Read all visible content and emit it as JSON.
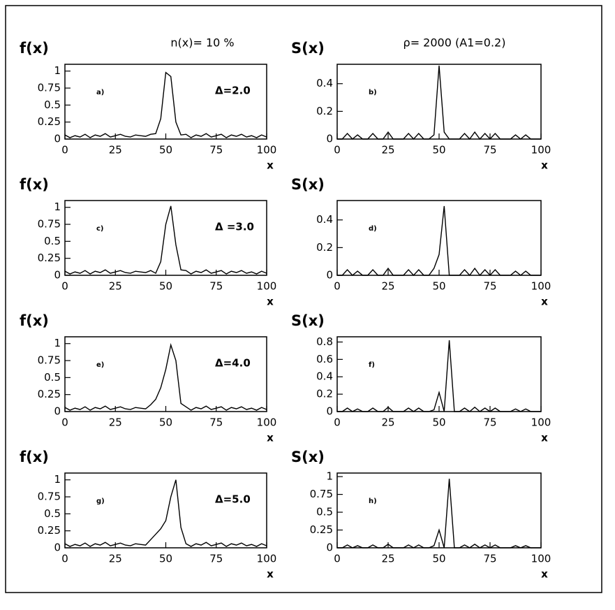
{
  "chart_data": [
    {
      "type": "line",
      "title": "n(x)= 10 %",
      "y_label": "f(x)",
      "x_label": "x",
      "panel_label": "a)",
      "annotation": "Δ=2.0",
      "x": [
        0,
        2.5,
        5,
        7.5,
        10,
        12.5,
        15,
        17.5,
        20,
        22.5,
        25,
        27.5,
        30,
        32.5,
        35,
        37.5,
        40,
        42.5,
        45,
        47.5,
        50,
        52.5,
        55,
        57.5,
        60,
        62.5,
        65,
        67.5,
        70,
        72.5,
        75,
        77.5,
        80,
        82.5,
        85,
        87.5,
        90,
        92.5,
        95,
        97.5,
        100
      ],
      "values": [
        0.06,
        0.02,
        0.05,
        0.03,
        0.07,
        0.02,
        0.06,
        0.04,
        0.08,
        0.03,
        0.05,
        0.07,
        0.04,
        0.03,
        0.06,
        0.05,
        0.04,
        0.07,
        0.08,
        0.3,
        0.98,
        0.92,
        0.25,
        0.06,
        0.07,
        0.02,
        0.06,
        0.04,
        0.08,
        0.03,
        0.05,
        0.07,
        0.02,
        0.06,
        0.04,
        0.07,
        0.03,
        0.05,
        0.02,
        0.06,
        0.03
      ],
      "xlim": [
        0,
        100
      ],
      "ylim": [
        0,
        1.1
      ],
      "xticks": [
        0,
        25,
        50,
        75,
        100
      ],
      "yticks": [
        0,
        0.25,
        0.5,
        0.75,
        1
      ],
      "color": "#000000"
    },
    {
      "type": "line",
      "title": "ρ= 2000 (A1=0.2)",
      "y_label": "S(x)",
      "x_label": "x",
      "panel_label": "b)",
      "x": [
        0,
        2.5,
        5,
        7.5,
        10,
        12.5,
        15,
        17.5,
        20,
        22.5,
        25,
        27.5,
        30,
        32.5,
        35,
        37.5,
        40,
        42.5,
        45,
        47.5,
        50,
        52.5,
        55,
        57.5,
        60,
        62.5,
        65,
        67.5,
        70,
        72.5,
        75,
        77.5,
        80,
        82.5,
        85,
        87.5,
        90,
        92.5,
        95,
        97.5,
        100
      ],
      "values": [
        0,
        0,
        0.04,
        0,
        0.03,
        0,
        0,
        0.04,
        0,
        0,
        0.05,
        0,
        0,
        0,
        0.04,
        0,
        0.04,
        0,
        0,
        0.03,
        0.53,
        0.05,
        0,
        0,
        0,
        0.04,
        0,
        0.05,
        0,
        0.04,
        0,
        0.04,
        0,
        0,
        0,
        0.03,
        0,
        0.03,
        0,
        0,
        0
      ],
      "xlim": [
        0,
        100
      ],
      "ylim": [
        0,
        0.54
      ],
      "xticks": [
        0,
        25,
        50,
        75,
        100
      ],
      "yticks": [
        0,
        0.2,
        0.4
      ],
      "color": "#000000"
    },
    {
      "type": "line",
      "y_label": "f(x)",
      "x_label": "x",
      "panel_label": "c)",
      "annotation": "Δ =3.0",
      "x": [
        0,
        2.5,
        5,
        7.5,
        10,
        12.5,
        15,
        17.5,
        20,
        22.5,
        25,
        27.5,
        30,
        32.5,
        35,
        37.5,
        40,
        42.5,
        45,
        47.5,
        50,
        52.5,
        55,
        57.5,
        60,
        62.5,
        65,
        67.5,
        70,
        72.5,
        75,
        77.5,
        80,
        82.5,
        85,
        87.5,
        90,
        92.5,
        95,
        97.5,
        100
      ],
      "values": [
        0.06,
        0.02,
        0.05,
        0.03,
        0.07,
        0.02,
        0.06,
        0.04,
        0.08,
        0.03,
        0.05,
        0.07,
        0.04,
        0.03,
        0.06,
        0.05,
        0.04,
        0.07,
        0.03,
        0.2,
        0.75,
        1.02,
        0.45,
        0.08,
        0.07,
        0.02,
        0.06,
        0.04,
        0.08,
        0.03,
        0.05,
        0.07,
        0.02,
        0.06,
        0.04,
        0.07,
        0.03,
        0.05,
        0.02,
        0.06,
        0.03
      ],
      "xlim": [
        0,
        100
      ],
      "ylim": [
        0,
        1.1
      ],
      "xticks": [
        0,
        25,
        50,
        75,
        100
      ],
      "yticks": [
        0,
        0.25,
        0.5,
        0.75,
        1
      ],
      "color": "#000000"
    },
    {
      "type": "line",
      "y_label": "S(x)",
      "x_label": "x",
      "panel_label": "d)",
      "x": [
        0,
        2.5,
        5,
        7.5,
        10,
        12.5,
        15,
        17.5,
        20,
        22.5,
        25,
        27.5,
        30,
        32.5,
        35,
        37.5,
        40,
        42.5,
        45,
        47.5,
        50,
        52.5,
        55,
        57.5,
        60,
        62.5,
        65,
        67.5,
        70,
        72.5,
        75,
        77.5,
        80,
        82.5,
        85,
        87.5,
        90,
        92.5,
        95,
        97.5,
        100
      ],
      "values": [
        0,
        0,
        0.04,
        0,
        0.03,
        0,
        0,
        0.04,
        0,
        0,
        0.05,
        0,
        0,
        0,
        0.04,
        0,
        0.04,
        0,
        0,
        0.05,
        0.15,
        0.5,
        0,
        0,
        0,
        0.04,
        0,
        0.05,
        0,
        0.04,
        0,
        0.04,
        0,
        0,
        0,
        0.03,
        0,
        0.03,
        0,
        0,
        0
      ],
      "xlim": [
        0,
        100
      ],
      "ylim": [
        0,
        0.54
      ],
      "xticks": [
        0,
        25,
        50,
        75,
        100
      ],
      "yticks": [
        0,
        0.2,
        0.4
      ],
      "color": "#000000"
    },
    {
      "type": "line",
      "y_label": "f(x)",
      "x_label": "x",
      "panel_label": "e)",
      "annotation": "Δ=4.0",
      "x": [
        0,
        2.5,
        5,
        7.5,
        10,
        12.5,
        15,
        17.5,
        20,
        22.5,
        25,
        27.5,
        30,
        32.5,
        35,
        37.5,
        40,
        42.5,
        45,
        47.5,
        50,
        52.5,
        55,
        57.5,
        60,
        62.5,
        65,
        67.5,
        70,
        72.5,
        75,
        77.5,
        80,
        82.5,
        85,
        87.5,
        90,
        92.5,
        95,
        97.5,
        100
      ],
      "values": [
        0.06,
        0.02,
        0.05,
        0.03,
        0.07,
        0.02,
        0.06,
        0.04,
        0.08,
        0.03,
        0.05,
        0.07,
        0.04,
        0.03,
        0.06,
        0.05,
        0.04,
        0.1,
        0.18,
        0.35,
        0.62,
        0.98,
        0.75,
        0.12,
        0.07,
        0.02,
        0.06,
        0.04,
        0.08,
        0.03,
        0.05,
        0.07,
        0.02,
        0.06,
        0.04,
        0.07,
        0.03,
        0.05,
        0.02,
        0.06,
        0.03
      ],
      "xlim": [
        0,
        100
      ],
      "ylim": [
        0,
        1.1
      ],
      "xticks": [
        0,
        25,
        50,
        75,
        100
      ],
      "yticks": [
        0,
        0.25,
        0.5,
        0.75,
        1
      ],
      "color": "#000000"
    },
    {
      "type": "line",
      "y_label": "S(x)",
      "x_label": "x",
      "panel_label": "f)",
      "x": [
        0,
        2.5,
        5,
        7.5,
        10,
        12.5,
        15,
        17.5,
        20,
        22.5,
        25,
        27.5,
        30,
        32.5,
        35,
        37.5,
        40,
        42.5,
        45,
        47.5,
        50,
        52.5,
        55,
        57.5,
        60,
        62.5,
        65,
        67.5,
        70,
        72.5,
        75,
        77.5,
        80,
        82.5,
        85,
        87.5,
        90,
        92.5,
        95,
        97.5,
        100
      ],
      "values": [
        0,
        0,
        0.04,
        0,
        0.03,
        0,
        0,
        0.04,
        0,
        0,
        0.05,
        0,
        0,
        0,
        0.04,
        0,
        0.04,
        0,
        0,
        0.02,
        0.22,
        0,
        0.82,
        0,
        0,
        0.04,
        0,
        0.05,
        0,
        0.04,
        0,
        0.04,
        0,
        0,
        0,
        0.03,
        0,
        0.03,
        0,
        0,
        0
      ],
      "xlim": [
        0,
        100
      ],
      "ylim": [
        0,
        0.86
      ],
      "xticks": [
        0,
        25,
        50,
        75,
        100
      ],
      "yticks": [
        0,
        0.2,
        0.4,
        0.6,
        0.8
      ],
      "color": "#000000"
    },
    {
      "type": "line",
      "y_label": "f(x)",
      "x_label": "x",
      "panel_label": "g)",
      "annotation": "Δ=5.0",
      "x": [
        0,
        2.5,
        5,
        7.5,
        10,
        12.5,
        15,
        17.5,
        20,
        22.5,
        25,
        27.5,
        30,
        32.5,
        35,
        37.5,
        40,
        42.5,
        45,
        47.5,
        50,
        52.5,
        55,
        57.5,
        60,
        62.5,
        65,
        67.5,
        70,
        72.5,
        75,
        77.5,
        80,
        82.5,
        85,
        87.5,
        90,
        92.5,
        95,
        97.5,
        100
      ],
      "values": [
        0.06,
        0.02,
        0.05,
        0.03,
        0.07,
        0.02,
        0.06,
        0.04,
        0.08,
        0.03,
        0.05,
        0.07,
        0.04,
        0.03,
        0.06,
        0.05,
        0.04,
        0.12,
        0.2,
        0.28,
        0.4,
        0.75,
        1.0,
        0.3,
        0.06,
        0.02,
        0.06,
        0.04,
        0.08,
        0.03,
        0.05,
        0.07,
        0.02,
        0.06,
        0.04,
        0.07,
        0.03,
        0.05,
        0.02,
        0.06,
        0.03
      ],
      "xlim": [
        0,
        100
      ],
      "ylim": [
        0,
        1.1
      ],
      "xticks": [
        0,
        25,
        50,
        75,
        100
      ],
      "yticks": [
        0,
        0.25,
        0.5,
        0.75,
        1
      ],
      "color": "#000000"
    },
    {
      "type": "line",
      "y_label": "S(x)",
      "x_label": "x",
      "panel_label": "h)",
      "x": [
        0,
        2.5,
        5,
        7.5,
        10,
        12.5,
        15,
        17.5,
        20,
        22.5,
        25,
        27.5,
        30,
        32.5,
        35,
        37.5,
        40,
        42.5,
        45,
        47.5,
        50,
        52.5,
        55,
        57.5,
        60,
        62.5,
        65,
        67.5,
        70,
        72.5,
        75,
        77.5,
        80,
        82.5,
        85,
        87.5,
        90,
        92.5,
        95,
        97.5,
        100
      ],
      "values": [
        0,
        0,
        0.04,
        0,
        0.03,
        0,
        0,
        0.04,
        0,
        0,
        0.05,
        0,
        0,
        0,
        0.04,
        0,
        0.04,
        0,
        0,
        0.03,
        0.25,
        0,
        0.97,
        0,
        0,
        0.04,
        0,
        0.05,
        0,
        0.04,
        0,
        0.04,
        0,
        0,
        0,
        0.03,
        0,
        0.03,
        0,
        0,
        0
      ],
      "xlim": [
        0,
        100
      ],
      "ylim": [
        0,
        1.05
      ],
      "xticks": [
        0,
        25,
        50,
        75,
        100
      ],
      "yticks": [
        0,
        0.25,
        0.5,
        0.75,
        1
      ],
      "color": "#000000"
    }
  ]
}
